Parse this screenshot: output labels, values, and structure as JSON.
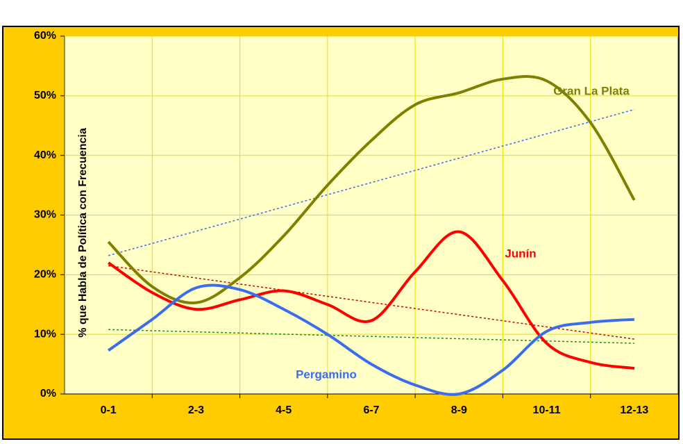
{
  "chart_data": {
    "type": "line",
    "y_axis_label": "% que Habla de Política con Frecuencia",
    "categories": [
      "0-1",
      null,
      "2-3",
      null,
      "4-5",
      null,
      "6-7",
      null,
      "8-9",
      null,
      "10-11",
      null,
      "12-13"
    ],
    "ylim": [
      0,
      60
    ],
    "yticks": [
      {
        "value": 0,
        "label": "0%"
      },
      {
        "value": 10,
        "label": "10%"
      },
      {
        "value": 20,
        "label": "20%"
      },
      {
        "value": 30,
        "label": "30%"
      },
      {
        "value": 40,
        "label": "40%"
      },
      {
        "value": 50,
        "label": "50%"
      },
      {
        "value": 60,
        "label": "60%"
      }
    ],
    "grid": true,
    "smooth": true,
    "series": [
      {
        "name": "Gran La Plata",
        "color": "#808000",
        "values": [
          25.5,
          18,
          15.3,
          19.5,
          26.5,
          35,
          42.5,
          48.5,
          50.5,
          52.8,
          52.5,
          45.5,
          32.5
        ]
      },
      {
        "name": "Junín",
        "color": "#ff0000",
        "values": [
          22,
          17,
          14.2,
          15.8,
          17.3,
          15,
          12.3,
          20.5,
          27.2,
          19,
          8.5,
          5.3,
          4.3
        ]
      },
      {
        "name": "Pergamino",
        "color": "#3b6cf0",
        "values": [
          7.3,
          12.5,
          17.8,
          17.5,
          14.2,
          10,
          5,
          1.5,
          0,
          4,
          10.5,
          12,
          12.5
        ]
      }
    ],
    "trendlines": [
      {
        "color": "#3b6cf0",
        "values": [
          23.2,
          47.7
        ]
      },
      {
        "color": "#cc0000",
        "values": [
          21.5,
          9.2
        ]
      },
      {
        "color": "#228822",
        "values": [
          10.8,
          8.5
        ]
      }
    ]
  }
}
